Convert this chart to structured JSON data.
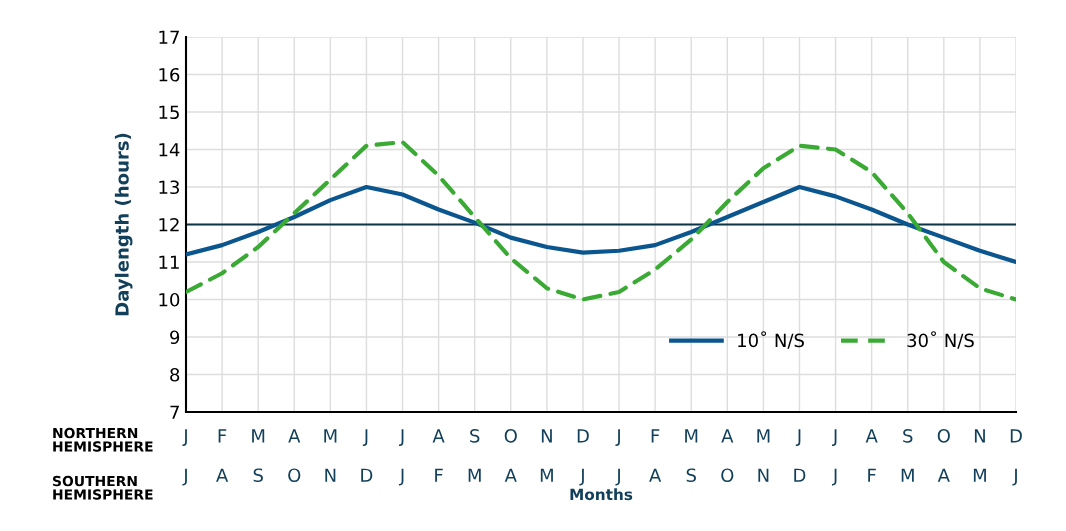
{
  "chart_data": {
    "type": "line",
    "ylabel": "Daylength (hours)",
    "xlabel": "Months",
    "categories": [
      "J\nJ",
      "F\nA",
      "M\nS",
      "A\nO",
      "M\nN",
      "J\nD",
      "J\nJ",
      "A\nF",
      "S\nM",
      "O\nA",
      "N\nM",
      "D\nJ",
      "J\nJ",
      "F\nA",
      "M\nS",
      "A\nO",
      "M\nN",
      "J\nD",
      "J\nJ",
      "A\nF",
      "S\nM",
      "O\nA",
      "N\nM",
      "D\nJ"
    ],
    "series": [
      {
        "name": "10˚ N/S",
        "color": "#0b568e",
        "line_style": "solid",
        "values": [
          11.2,
          11.45,
          11.8,
          12.2,
          12.65,
          13.0,
          12.8,
          12.4,
          12.05,
          11.65,
          11.4,
          11.25,
          11.3,
          11.45,
          11.8,
          12.2,
          12.6,
          13.0,
          12.75,
          12.4,
          12.0,
          11.65,
          11.3,
          11.0
        ]
      },
      {
        "name": "30˚ N/S",
        "color": "#3aaa35",
        "line_style": "dashed",
        "values": [
          10.2,
          10.7,
          11.4,
          12.3,
          13.2,
          14.1,
          14.2,
          13.3,
          12.2,
          11.1,
          10.3,
          10.0,
          10.2,
          10.8,
          11.6,
          12.6,
          13.5,
          14.1,
          14.0,
          13.4,
          12.3,
          11.0,
          10.3,
          10.0
        ]
      }
    ],
    "ylim": [
      7,
      17
    ],
    "yticks": [
      7,
      8,
      9,
      10,
      11,
      12,
      13,
      14,
      15,
      16,
      17
    ],
    "ref_lines": [
      {
        "axis": "y",
        "value": 12,
        "color": "#0d3447",
        "line_style": "solid"
      }
    ],
    "annotations": [
      "NORTHERN\nHEMISPHERE",
      "SOUTHERN\nHEMISPHERE"
    ],
    "grid": true,
    "legend": "bottom right",
    "marker": "none"
  }
}
